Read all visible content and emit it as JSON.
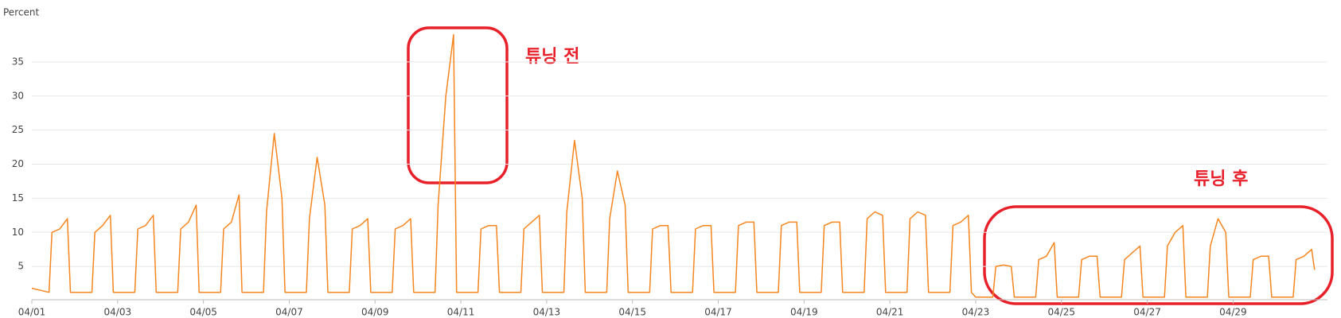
{
  "chart_data": {
    "type": "line",
    "y_label": "Percent",
    "x": [
      0,
      0.4,
      0.47,
      0.65,
      0.83,
      0.9,
      1,
      1.4,
      1.47,
      1.65,
      1.83,
      1.9,
      2,
      2.4,
      2.47,
      2.65,
      2.83,
      2.9,
      3,
      3.4,
      3.47,
      3.65,
      3.83,
      3.9,
      4,
      4.4,
      4.47,
      4.65,
      4.83,
      4.9,
      5,
      5.4,
      5.47,
      5.65,
      5.83,
      5.9,
      6,
      6.4,
      6.47,
      6.65,
      6.83,
      6.9,
      7,
      7.4,
      7.47,
      7.65,
      7.83,
      7.9,
      8,
      8.4,
      8.47,
      8.65,
      8.83,
      8.9,
      9,
      9.4,
      9.47,
      9.65,
      9.83,
      9.9,
      10,
      10.4,
      10.47,
      10.65,
      10.83,
      10.9,
      11,
      11.4,
      11.47,
      11.65,
      11.83,
      11.9,
      12,
      12.4,
      12.47,
      12.65,
      12.83,
      12.9,
      13,
      13.4,
      13.47,
      13.65,
      13.83,
      13.9,
      14,
      14.4,
      14.47,
      14.65,
      14.83,
      14.9,
      15,
      15.4,
      15.47,
      15.65,
      15.83,
      15.9,
      16,
      16.4,
      16.47,
      16.65,
      16.83,
      16.9,
      17,
      17.4,
      17.47,
      17.65,
      17.83,
      17.9,
      18,
      18.4,
      18.47,
      18.65,
      18.83,
      18.9,
      19,
      19.4,
      19.47,
      19.65,
      19.83,
      19.9,
      20,
      20.4,
      20.47,
      20.65,
      20.83,
      20.9,
      21,
      21.4,
      21.47,
      21.65,
      21.83,
      21.9,
      22,
      22.4,
      22.47,
      22.65,
      22.83,
      22.9,
      23,
      23.4,
      23.47,
      23.65,
      23.83,
      23.9,
      24,
      24.4,
      24.47,
      24.65,
      24.83,
      24.9,
      25,
      25.4,
      25.47,
      25.65,
      25.83,
      25.9,
      26,
      26.4,
      26.47,
      26.65,
      26.83,
      26.9,
      27,
      27.4,
      27.47,
      27.65,
      27.83,
      27.9,
      28,
      28.4,
      28.47,
      28.65,
      28.83,
      28.9,
      29,
      29.4,
      29.47,
      29.65,
      29.83,
      29.9
    ],
    "series": [
      {
        "color": "#f5861f",
        "values": [
          1.8,
          1.2,
          10,
          10.5,
          12,
          1.2,
          1.2,
          1.2,
          10,
          11,
          12.5,
          1.2,
          1.2,
          1.2,
          10.5,
          11,
          12.5,
          1.2,
          1.2,
          1.2,
          10.5,
          11.5,
          14,
          1.2,
          1.2,
          1.2,
          10.5,
          11.5,
          15.5,
          1.2,
          1.2,
          1.2,
          13,
          24.5,
          15,
          1.2,
          1.2,
          1.2,
          12,
          21,
          14,
          1.2,
          1.2,
          1.2,
          10.5,
          11,
          12,
          1.2,
          1.2,
          1.2,
          10.5,
          11,
          12,
          1.2,
          1.2,
          1.2,
          14,
          30,
          39,
          1.2,
          1.2,
          1.2,
          10.5,
          11,
          11,
          1.2,
          1.2,
          1.2,
          10.5,
          11.5,
          12.5,
          1.2,
          1.2,
          1.2,
          13,
          23.5,
          15,
          1.2,
          1.2,
          1.2,
          12,
          19,
          14,
          1.2,
          1.2,
          1.2,
          10.5,
          11,
          11,
          1.2,
          1.2,
          1.2,
          10.5,
          11,
          11,
          1.2,
          1.2,
          1.2,
          11,
          11.5,
          11.5,
          1.2,
          1.2,
          1.2,
          11,
          11.5,
          11.5,
          1.2,
          1.2,
          1.2,
          11,
          11.5,
          11.5,
          1.2,
          1.2,
          1.2,
          12,
          13,
          12.5,
          1.2,
          1.2,
          1.2,
          12,
          13,
          12.5,
          1.2,
          1.2,
          1.2,
          11,
          11.5,
          12.5,
          1.2,
          0.5,
          0.5,
          5,
          5.2,
          5,
          0.5,
          0.5,
          0.5,
          6,
          6.5,
          8.5,
          0.5,
          0.5,
          0.5,
          6,
          6.5,
          6.5,
          0.5,
          0.5,
          0.5,
          6,
          7,
          8,
          0.5,
          0.5,
          0.5,
          8,
          10,
          11,
          0.5,
          0.5,
          0.5,
          8,
          12,
          10,
          0.5,
          0.5,
          0.5,
          6,
          6.5,
          6.5,
          0.5,
          0.5,
          0.5,
          6,
          6.5,
          7.5,
          4.5
        ]
      }
    ],
    "xlim": [
      0,
      30.2
    ],
    "xticks": [
      {
        "value": 0,
        "label": "04/01"
      },
      {
        "value": 2,
        "label": "04/03"
      },
      {
        "value": 4,
        "label": "04/05"
      },
      {
        "value": 6,
        "label": "04/07"
      },
      {
        "value": 8,
        "label": "04/09"
      },
      {
        "value": 10,
        "label": "04/11"
      },
      {
        "value": 12,
        "label": "04/13"
      },
      {
        "value": 14,
        "label": "04/15"
      },
      {
        "value": 16,
        "label": "04/17"
      },
      {
        "value": 18,
        "label": "04/19"
      },
      {
        "value": 20,
        "label": "04/21"
      },
      {
        "value": 22,
        "label": "04/23"
      },
      {
        "value": 24,
        "label": "04/25"
      },
      {
        "value": 26,
        "label": "04/27"
      },
      {
        "value": 28,
        "label": "04/29"
      }
    ],
    "ylim": [
      0,
      40
    ],
    "yticks": [
      5,
      10,
      15,
      20,
      25,
      30,
      35
    ],
    "grid": true,
    "annotations": [
      {
        "text": "튜닝 전"
      },
      {
        "text": "튜닝 후"
      }
    ]
  }
}
